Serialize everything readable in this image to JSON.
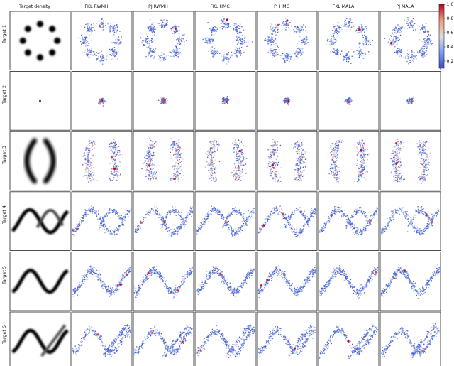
{
  "chart_data": {
    "type": "scatter",
    "column_titles": [
      "Target density",
      "FKL RWMH",
      "PJ RWMH",
      "FKL HMC",
      "PJ HMC",
      "FKL MALA",
      "PJ MALA"
    ],
    "row_labels": [
      "Target 1",
      "Target 2",
      "Target 3",
      "Target 4",
      "Target 5",
      "Target 6"
    ],
    "targets": [
      {
        "label": "Target 1",
        "shape": "ring of 8 gaussian modes"
      },
      {
        "label": "Target 2",
        "shape": "single concentrated mode"
      },
      {
        "label": "Target 3",
        "shape": "two crescent arcs"
      },
      {
        "label": "Target 4",
        "shape": "sine wave with crossing branch"
      },
      {
        "label": "Target 5",
        "shape": "sine wave"
      },
      {
        "label": "Target 6",
        "shape": "sine wave with diagonal branch"
      }
    ],
    "colorbar": {
      "ticks": [
        "0.2",
        "0.4",
        "0.6",
        "0.8",
        "1.0"
      ],
      "tick_values": [
        0.2,
        0.4,
        0.6,
        0.8,
        1.0
      ],
      "range": [
        0.1,
        1.0
      ],
      "colormap": "coolwarm",
      "colors": {
        "low": "#3b4cc0",
        "mid": "#dddddd",
        "high": "#b40426"
      }
    },
    "grid": false,
    "legend": "colorbar-right"
  }
}
